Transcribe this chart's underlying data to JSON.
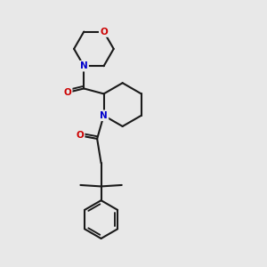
{
  "bg_color": "#e8e8e8",
  "bond_color": "#1a1a1a",
  "N_color": "#0000cc",
  "O_color": "#cc0000",
  "bond_width": 1.5,
  "font_size_atom": 7.5,
  "fig_w": 3.0,
  "fig_h": 3.0,
  "dpi": 100,
  "xlim": [
    0,
    10
  ],
  "ylim": [
    0,
    10
  ]
}
